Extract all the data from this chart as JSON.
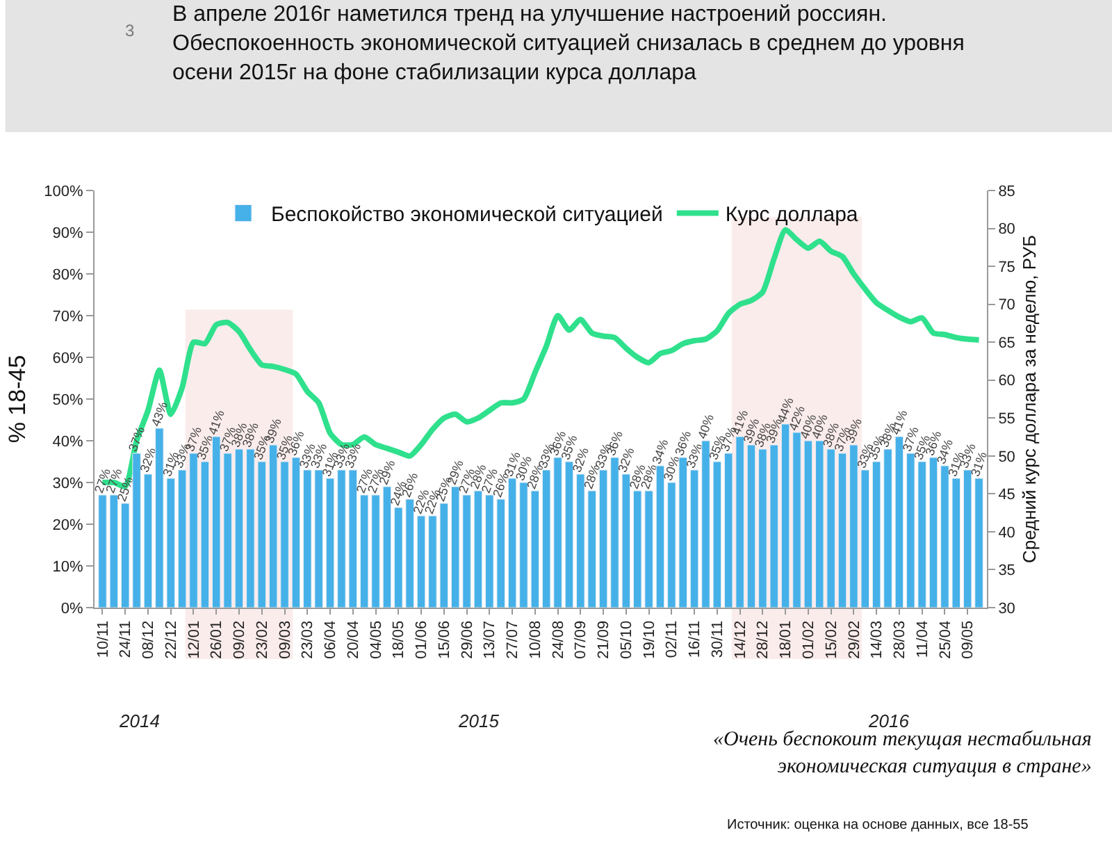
{
  "chart_data": {
    "type": "bar",
    "title": "В апреле 2016г наметился тренд на улучшение настроений россиян.\nОбеспокоенность экономической ситуацией снизалась в среднем до уровня\nосени 2015г на фоне стабилизации курса доллара",
    "ylabel": "% 18-45",
    "y2label": "Средний курс доллара за неделю, РУБ",
    "categories": [
      "10/11",
      null,
      "24/11",
      null,
      "08/12",
      null,
      "22/12",
      null,
      "12/01",
      null,
      "26/01",
      null,
      "09/02",
      null,
      "23/02",
      null,
      "09/03",
      null,
      "23/03",
      null,
      "06/04",
      null,
      "20/04",
      null,
      "04/05",
      null,
      "18/05",
      null,
      "01/06",
      null,
      "15/06",
      null,
      "29/06",
      null,
      "13/07",
      null,
      "27/07",
      null,
      "10/08",
      null,
      "24/08",
      null,
      "07/09",
      null,
      "21/09",
      null,
      "05/10",
      null,
      "19/10",
      null,
      "02/11",
      null,
      "16/11",
      null,
      "30/11",
      null,
      "14/12",
      null,
      "28/12",
      null,
      "18/01",
      null,
      "01/02",
      null,
      "15/02",
      null,
      "29/02",
      null,
      "14/03",
      null,
      "28/03",
      null,
      "11/04",
      null,
      "25/04",
      null,
      "09/05",
      null
    ],
    "series": [
      {
        "name": "Беспокойство экономической ситуацией",
        "color": "#45b1e8",
        "values": [
          27,
          27,
          25,
          37,
          32,
          43,
          31,
          33,
          37,
          35,
          41,
          37,
          38,
          38,
          35,
          39,
          35,
          36,
          33,
          33,
          31,
          33,
          33,
          27,
          27,
          29,
          24,
          26,
          22,
          22,
          25,
          29,
          27,
          28,
          27,
          26,
          31,
          30,
          28,
          33,
          36,
          35,
          32,
          28,
          33,
          36,
          32,
          28,
          28,
          34,
          30,
          36,
          33,
          40,
          35,
          37,
          41,
          39,
          38,
          39,
          44,
          42,
          40,
          40,
          38,
          37,
          39,
          33,
          35,
          38,
          41,
          37,
          35,
          36,
          34,
          31,
          33,
          31
        ],
        "value_labels": [
          "27%",
          "27%",
          "25%",
          "37%",
          "32%",
          "43%",
          "31%",
          "33%",
          "37%",
          "35%",
          "41%",
          "37%",
          "38%",
          "38%",
          "35%",
          "39%",
          "35%",
          "36%",
          "33%",
          "33%",
          "31%",
          "33%",
          "33%",
          "27%",
          "27%",
          "29%",
          "24%",
          "26%",
          "22%",
          "22%",
          "25%",
          "29%",
          "27%",
          "28%",
          "27%",
          "26%",
          "31%",
          "30%",
          "28%",
          "33%",
          "36%",
          "35%",
          "32%",
          "28%",
          "33%",
          "36%",
          "32%",
          "28%",
          "28%",
          "34%",
          "30%",
          "36%",
          "33%",
          "40%",
          "35%",
          "37%",
          "41%",
          "39%",
          "38%",
          "39%",
          "44%",
          "42%",
          "40%",
          "40%",
          "38%",
          "37%",
          "39%",
          "33%",
          "35%",
          "38%",
          "41%",
          "37%",
          "35%",
          "36%",
          "34%",
          "31%",
          "33%",
          "31%"
        ]
      },
      {
        "name": "Курс доллара",
        "type": "line",
        "axis": "y2",
        "color": "#2fe08c",
        "values": [
          46.5,
          46.5,
          46,
          52,
          56,
          61.3,
          55.5,
          59,
          65,
          64.8,
          67.3,
          67.6,
          66.4,
          64,
          62,
          61.8,
          61.4,
          60.8,
          58.5,
          57,
          53,
          51.5,
          51.5,
          52.5,
          51.5,
          51,
          50.5,
          50,
          51.5,
          53.5,
          55,
          55.5,
          54.5,
          55,
          56,
          57,
          57,
          57.5,
          61,
          64.5,
          68.5,
          66.6,
          68,
          66.2,
          65.8,
          65.6,
          64.2,
          63,
          62.3,
          63.5,
          63.9,
          64.8,
          65.2,
          65.4,
          66.5,
          68.8,
          70,
          70.5,
          71.6,
          76,
          79.8,
          78.5,
          77.4,
          78.3,
          77,
          76.3,
          74,
          72,
          70.2,
          69.2,
          68.3,
          67.7,
          68.2,
          66.2,
          66,
          65.6,
          65.4,
          65.3
        ]
      }
    ],
    "ylim": [
      0,
      100
    ],
    "yticks": [
      {
        "value": 0,
        "label": "0%"
      },
      {
        "value": 10,
        "label": "10%"
      },
      {
        "value": 20,
        "label": "20%"
      },
      {
        "value": 30,
        "label": "30%"
      },
      {
        "value": 40,
        "label": "40%"
      },
      {
        "value": 50,
        "label": "50%"
      },
      {
        "value": 60,
        "label": "60%"
      },
      {
        "value": 70,
        "label": "70%"
      },
      {
        "value": 80,
        "label": "80%"
      },
      {
        "value": 90,
        "label": "90%"
      },
      {
        "value": 100,
        "label": "100%"
      }
    ],
    "y2lim": [
      30,
      85
    ],
    "y2ticks": [
      30,
      35,
      40,
      45,
      50,
      55,
      60,
      65,
      70,
      75,
      80,
      85
    ],
    "bands": [
      {
        "axis": "x",
        "from": "12/01",
        "to": "09/03",
        "color": "#f2b8b8"
      },
      {
        "axis": "x",
        "from": "14/12",
        "to": "29/02",
        "color": "#f2b8b8"
      }
    ],
    "legend": "top",
    "grid": false,
    "line_style": "solid",
    "marker": "none",
    "annotations": [
      "2014",
      "2015",
      "2016",
      "«Очень беспокоит текущая нестабильная\nэкономическая ситуация в стране»",
      "Источник: оценка на основе данных, все 18-55",
      "3"
    ]
  }
}
